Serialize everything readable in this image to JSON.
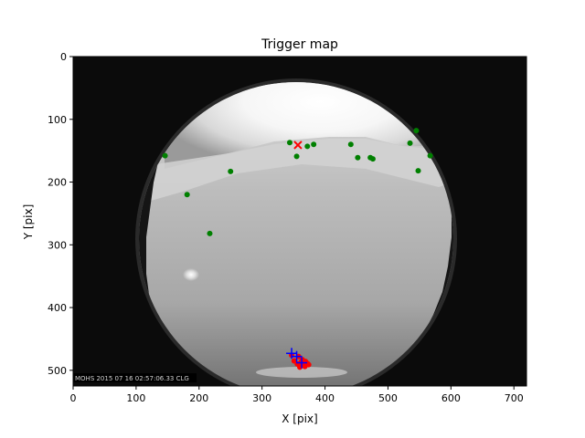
{
  "chart_data": {
    "type": "scatter",
    "title": "Trigger map",
    "xlabel": "X [pix]",
    "ylabel": "Y [pix]",
    "xlim": [
      0,
      720
    ],
    "ylim": [
      525,
      0
    ],
    "x_ticks": [
      0,
      100,
      200,
      300,
      400,
      500,
      600,
      700
    ],
    "y_ticks": [
      0,
      100,
      200,
      300,
      400,
      500
    ],
    "grid": false,
    "legend": "none",
    "background_image": "all-sky-camera-fisheye-frame",
    "image_timestamp": "MOHS 2015 07 16 02:57:06.33 CLG",
    "colors": {
      "green_points": "#008000",
      "red_points": "#ff0000",
      "blue_points": "#0000ff",
      "axes": "#000000",
      "frame_background": "#0b0b0b"
    },
    "series": [
      {
        "marker": "dot",
        "color": "#008000",
        "points": [
          [
            146,
            158
          ],
          [
            181,
            220
          ],
          [
            217,
            282
          ],
          [
            250,
            183
          ],
          [
            344,
            137
          ],
          [
            355,
            159
          ],
          [
            372,
            143
          ],
          [
            382,
            140
          ],
          [
            441,
            140
          ],
          [
            452,
            161
          ],
          [
            472,
            161
          ],
          [
            476,
            163
          ],
          [
            535,
            138
          ],
          [
            545,
            118
          ],
          [
            548,
            182
          ],
          [
            567,
            158
          ]
        ]
      },
      {
        "marker": "x",
        "color": "#ff0000",
        "points": [
          [
            357,
            141
          ]
        ]
      },
      {
        "marker": "dot",
        "color": "#ff0000",
        "points": [
          [
            351,
            485
          ],
          [
            356,
            490
          ],
          [
            362,
            487
          ],
          [
            366,
            492
          ],
          [
            369,
            486
          ],
          [
            372,
            489
          ],
          [
            360,
            495
          ],
          [
            364,
            483
          ],
          [
            358,
            478
          ],
          [
            347,
            476
          ],
          [
            368,
            494
          ],
          [
            374,
            491
          ]
        ]
      },
      {
        "marker": "plus",
        "color": "#0000ff",
        "points": [
          [
            347,
            473
          ],
          [
            355,
            478
          ],
          [
            363,
            488
          ]
        ]
      }
    ]
  }
}
